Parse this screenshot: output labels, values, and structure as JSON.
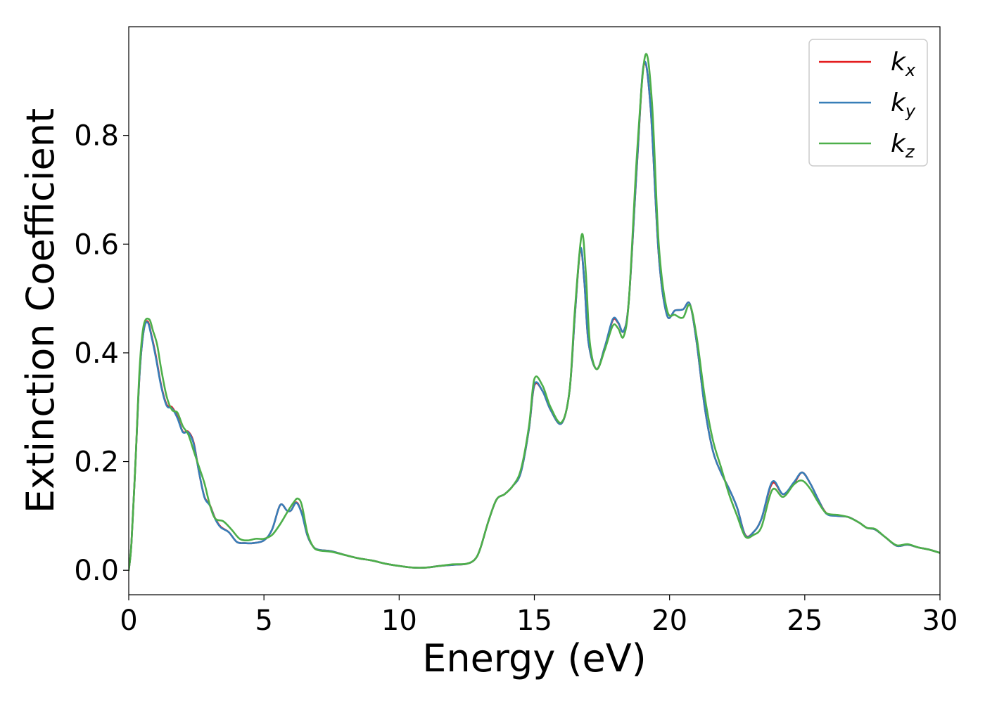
{
  "chart_data": {
    "type": "line",
    "title": "",
    "xlabel": "Energy (eV)",
    "ylabel": "Extinction Coefficient",
    "xlim": [
      0,
      30
    ],
    "ylim": [
      -0.045,
      1.0
    ],
    "xticks": [
      0,
      5,
      10,
      15,
      20,
      25,
      30
    ],
    "yticks": [
      0.0,
      0.2,
      0.4,
      0.6,
      0.8
    ],
    "xtick_labels": [
      "0",
      "5",
      "10",
      "15",
      "20",
      "25",
      "30"
    ],
    "ytick_labels": [
      "0.0",
      "0.2",
      "0.4",
      "0.6",
      "0.8"
    ],
    "grid": false,
    "legend_position": "top-right",
    "series": [
      {
        "name": "k_x",
        "legend_main": "k",
        "legend_sub": "x",
        "color": "#e41a1c",
        "x": [
          0,
          0.1,
          0.25,
          0.4,
          0.55,
          0.7,
          0.85,
          1.0,
          1.2,
          1.4,
          1.6,
          1.8,
          2.0,
          2.2,
          2.4,
          2.6,
          2.8,
          3.0,
          3.2,
          3.4,
          3.7,
          4.0,
          4.3,
          4.6,
          5.0,
          5.3,
          5.6,
          5.85,
          6.0,
          6.2,
          6.4,
          6.6,
          6.8,
          7.0,
          7.5,
          8.0,
          8.5,
          9.0,
          9.5,
          10.0,
          10.5,
          11.0,
          11.5,
          12.0,
          12.5,
          12.8,
          13.0,
          13.3,
          13.6,
          13.9,
          14.2,
          14.5,
          14.8,
          15.0,
          15.3,
          15.6,
          16.0,
          16.3,
          16.5,
          16.7,
          16.85,
          17.0,
          17.3,
          17.6,
          17.9,
          18.1,
          18.3,
          18.5,
          18.8,
          19.05,
          19.3,
          19.6,
          19.9,
          20.2,
          20.5,
          20.75,
          21.0,
          21.3,
          21.6,
          21.9,
          22.2,
          22.5,
          22.8,
          23.1,
          23.4,
          23.8,
          24.2,
          24.6,
          24.9,
          25.2,
          25.5,
          25.8,
          26.2,
          26.6,
          27.0,
          27.3,
          27.6,
          28.0,
          28.4,
          28.8,
          29.2,
          29.6,
          30.0
        ],
        "y": [
          0.0,
          0.05,
          0.2,
          0.36,
          0.44,
          0.458,
          0.43,
          0.395,
          0.34,
          0.305,
          0.3,
          0.282,
          0.255,
          0.255,
          0.235,
          0.18,
          0.135,
          0.12,
          0.095,
          0.08,
          0.07,
          0.052,
          0.05,
          0.05,
          0.055,
          0.075,
          0.12,
          0.11,
          0.11,
          0.125,
          0.105,
          0.065,
          0.045,
          0.038,
          0.035,
          0.028,
          0.022,
          0.018,
          0.012,
          0.008,
          0.005,
          0.005,
          0.008,
          0.01,
          0.012,
          0.02,
          0.04,
          0.09,
          0.13,
          0.14,
          0.155,
          0.18,
          0.26,
          0.34,
          0.33,
          0.295,
          0.27,
          0.33,
          0.47,
          0.59,
          0.53,
          0.42,
          0.37,
          0.41,
          0.46,
          0.455,
          0.44,
          0.5,
          0.75,
          0.93,
          0.85,
          0.58,
          0.47,
          0.478,
          0.48,
          0.49,
          0.42,
          0.3,
          0.22,
          0.18,
          0.15,
          0.115,
          0.065,
          0.07,
          0.095,
          0.16,
          0.14,
          0.16,
          0.18,
          0.16,
          0.13,
          0.105,
          0.1,
          0.098,
          0.088,
          0.078,
          0.075,
          0.06,
          0.045,
          0.047,
          0.042,
          0.038,
          0.032
        ]
      },
      {
        "name": "k_y",
        "legend_main": "k",
        "legend_sub": "y",
        "color": "#377eb8",
        "x": [
          0,
          0.1,
          0.25,
          0.4,
          0.55,
          0.7,
          0.85,
          1.0,
          1.2,
          1.4,
          1.6,
          1.8,
          2.0,
          2.2,
          2.4,
          2.6,
          2.8,
          3.0,
          3.2,
          3.4,
          3.7,
          4.0,
          4.3,
          4.6,
          5.0,
          5.3,
          5.6,
          5.85,
          6.0,
          6.2,
          6.4,
          6.6,
          6.8,
          7.0,
          7.5,
          8.0,
          8.5,
          9.0,
          9.5,
          10.0,
          10.5,
          11.0,
          11.5,
          12.0,
          12.5,
          12.8,
          13.0,
          13.3,
          13.6,
          13.9,
          14.2,
          14.5,
          14.8,
          15.0,
          15.3,
          15.6,
          16.0,
          16.3,
          16.5,
          16.7,
          16.85,
          17.0,
          17.3,
          17.6,
          17.9,
          18.1,
          18.3,
          18.5,
          18.8,
          19.05,
          19.3,
          19.6,
          19.9,
          20.2,
          20.5,
          20.75,
          21.0,
          21.3,
          21.6,
          21.9,
          22.2,
          22.5,
          22.8,
          23.1,
          23.4,
          23.8,
          24.2,
          24.6,
          24.9,
          25.2,
          25.5,
          25.8,
          26.2,
          26.6,
          27.0,
          27.3,
          27.6,
          28.0,
          28.4,
          28.8,
          29.2,
          29.6,
          30.0
        ],
        "y": [
          0.0,
          0.05,
          0.2,
          0.36,
          0.44,
          0.456,
          0.428,
          0.392,
          0.338,
          0.303,
          0.298,
          0.28,
          0.254,
          0.254,
          0.233,
          0.18,
          0.134,
          0.119,
          0.094,
          0.079,
          0.07,
          0.052,
          0.05,
          0.05,
          0.055,
          0.075,
          0.12,
          0.11,
          0.11,
          0.124,
          0.104,
          0.065,
          0.045,
          0.038,
          0.035,
          0.028,
          0.022,
          0.018,
          0.012,
          0.008,
          0.005,
          0.005,
          0.008,
          0.01,
          0.012,
          0.02,
          0.04,
          0.09,
          0.13,
          0.14,
          0.155,
          0.18,
          0.26,
          0.342,
          0.33,
          0.295,
          0.27,
          0.33,
          0.47,
          0.592,
          0.53,
          0.42,
          0.37,
          0.41,
          0.462,
          0.456,
          0.44,
          0.5,
          0.752,
          0.932,
          0.85,
          0.58,
          0.47,
          0.478,
          0.48,
          0.49,
          0.42,
          0.3,
          0.22,
          0.18,
          0.15,
          0.115,
          0.064,
          0.07,
          0.095,
          0.163,
          0.14,
          0.162,
          0.18,
          0.16,
          0.13,
          0.104,
          0.1,
          0.098,
          0.088,
          0.078,
          0.075,
          0.06,
          0.045,
          0.047,
          0.042,
          0.038,
          0.032
        ]
      },
      {
        "name": "k_z",
        "legend_main": "k",
        "legend_sub": "z",
        "color": "#4daf4a",
        "x": [
          0,
          0.1,
          0.25,
          0.4,
          0.55,
          0.75,
          0.9,
          1.05,
          1.2,
          1.4,
          1.6,
          1.8,
          2.0,
          2.2,
          2.4,
          2.6,
          2.8,
          3.0,
          3.2,
          3.5,
          3.8,
          4.1,
          4.4,
          4.7,
          5.0,
          5.3,
          5.6,
          5.9,
          6.1,
          6.25,
          6.4,
          6.6,
          6.8,
          7.0,
          7.5,
          8.0,
          8.5,
          9.0,
          9.5,
          10.0,
          10.5,
          11.0,
          11.5,
          12.0,
          12.5,
          12.8,
          13.0,
          13.3,
          13.6,
          13.9,
          14.2,
          14.5,
          14.8,
          15.0,
          15.3,
          15.6,
          16.0,
          16.3,
          16.5,
          16.75,
          16.9,
          17.05,
          17.3,
          17.6,
          17.9,
          18.1,
          18.3,
          18.5,
          18.8,
          19.1,
          19.35,
          19.6,
          19.9,
          20.2,
          20.5,
          20.75,
          21.0,
          21.3,
          21.6,
          21.9,
          22.2,
          22.5,
          22.8,
          23.1,
          23.4,
          23.8,
          24.2,
          24.6,
          24.9,
          25.2,
          25.5,
          25.8,
          26.2,
          26.6,
          27.0,
          27.3,
          27.6,
          28.0,
          28.4,
          28.8,
          29.2,
          29.6,
          30.0
        ],
        "y": [
          0.0,
          0.05,
          0.2,
          0.37,
          0.45,
          0.462,
          0.44,
          0.415,
          0.37,
          0.32,
          0.295,
          0.29,
          0.265,
          0.25,
          0.22,
          0.19,
          0.16,
          0.12,
          0.095,
          0.09,
          0.075,
          0.058,
          0.055,
          0.058,
          0.058,
          0.065,
          0.085,
          0.11,
          0.125,
          0.132,
          0.12,
          0.07,
          0.045,
          0.037,
          0.034,
          0.028,
          0.022,
          0.018,
          0.012,
          0.008,
          0.005,
          0.005,
          0.008,
          0.011,
          0.012,
          0.02,
          0.04,
          0.09,
          0.13,
          0.14,
          0.155,
          0.185,
          0.265,
          0.352,
          0.34,
          0.3,
          0.272,
          0.33,
          0.48,
          0.617,
          0.55,
          0.42,
          0.37,
          0.405,
          0.45,
          0.445,
          0.43,
          0.5,
          0.77,
          0.947,
          0.86,
          0.6,
          0.48,
          0.47,
          0.465,
          0.488,
          0.43,
          0.32,
          0.24,
          0.19,
          0.14,
          0.1,
          0.062,
          0.065,
          0.08,
          0.148,
          0.135,
          0.158,
          0.165,
          0.15,
          0.125,
          0.105,
          0.102,
          0.098,
          0.088,
          0.078,
          0.076,
          0.06,
          0.046,
          0.048,
          0.042,
          0.038,
          0.032
        ]
      }
    ]
  }
}
